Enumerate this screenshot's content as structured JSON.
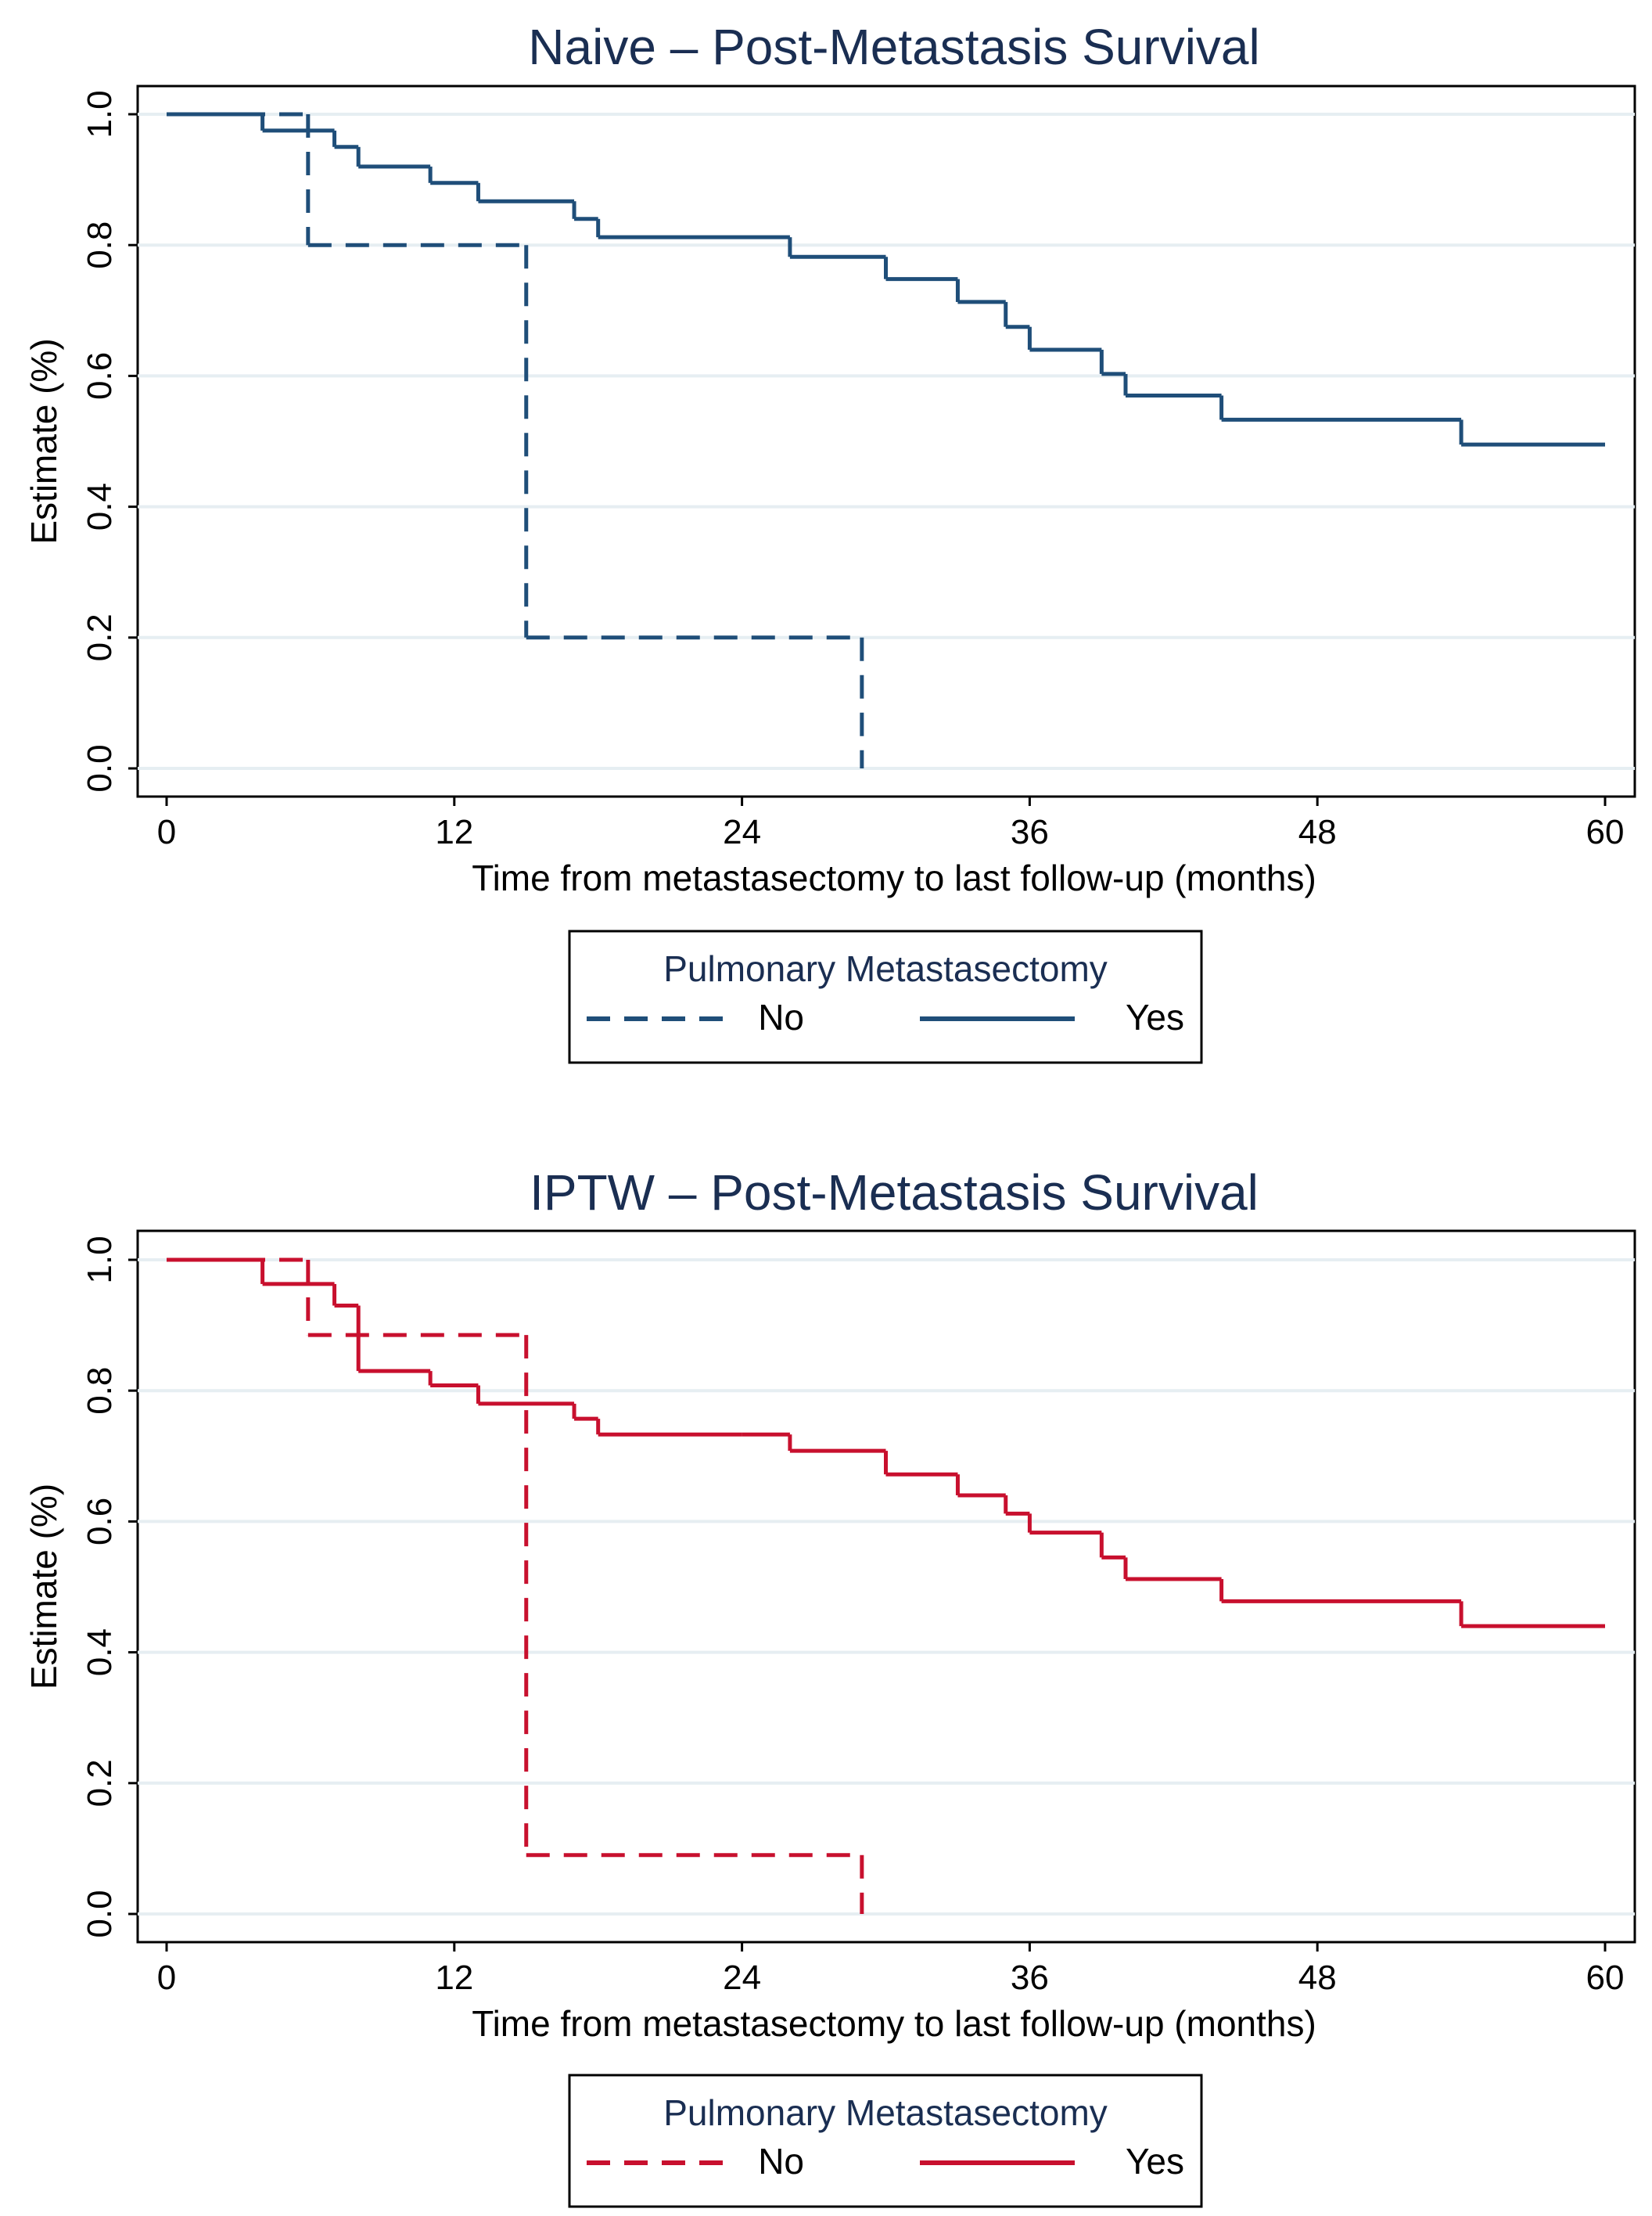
{
  "chart_data": [
    {
      "type": "line",
      "title": "Naive – Post-Metastasis Survival",
      "xlabel": "Time from metastasectomy to last follow-up (months)",
      "ylabel": "Estimate (%)",
      "xlim": [
        0,
        60
      ],
      "ylim": [
        0,
        1
      ],
      "xticks": [
        "0",
        "12",
        "24",
        "36",
        "48",
        "60"
      ],
      "yticks": [
        "0.0",
        "0.2",
        "0.4",
        "0.6",
        "0.8",
        "1.0"
      ],
      "grid": true,
      "color": "#1f4e79",
      "title_color": "#1a2e52",
      "legend": {
        "title": "Pulmonary Metastasectomy",
        "entries": [
          "No",
          "Yes"
        ]
      },
      "series": [
        {
          "name": "No",
          "style": "dashed",
          "x": [
            0,
            5.9,
            15,
            29
          ],
          "y": [
            1.0,
            0.8,
            0.2,
            0.0
          ]
        },
        {
          "name": "Yes",
          "style": "solid",
          "x": [
            0,
            4,
            7,
            8,
            11,
            13,
            17,
            18,
            26,
            30,
            33,
            35,
            36,
            39,
            40,
            44,
            54,
            60
          ],
          "y": [
            1.0,
            0.975,
            0.95,
            0.92,
            0.895,
            0.867,
            0.84,
            0.812,
            0.782,
            0.748,
            0.713,
            0.675,
            0.64,
            0.603,
            0.57,
            0.533,
            0.495,
            0.495
          ]
        }
      ]
    },
    {
      "type": "line",
      "title": "IPTW – Post-Metastasis Survival",
      "xlabel": "Time from metastasectomy to last follow-up (months)",
      "ylabel": "Estimate (%)",
      "xlim": [
        0,
        60
      ],
      "ylim": [
        0,
        1
      ],
      "xticks": [
        "0",
        "12",
        "24",
        "36",
        "48",
        "60"
      ],
      "yticks": [
        "0.0",
        "0.2",
        "0.4",
        "0.6",
        "0.8",
        "1.0"
      ],
      "grid": true,
      "color": "#c8102e",
      "title_color": "#1a2e52",
      "legend": {
        "title": "Pulmonary Metastasectomy",
        "entries": [
          "No",
          "Yes"
        ]
      },
      "series": [
        {
          "name": "No",
          "style": "dashed",
          "x": [
            0,
            5.9,
            15,
            29
          ],
          "y": [
            1.0,
            0.885,
            0.09,
            0.0
          ]
        },
        {
          "name": "Yes",
          "style": "solid",
          "x": [
            0,
            4,
            7,
            8,
            11,
            13,
            17,
            18,
            24,
            26,
            30,
            33,
            35,
            36,
            39,
            40,
            44,
            54,
            60
          ],
          "y": [
            1.0,
            0.963,
            0.93,
            0.83,
            0.808,
            0.78,
            0.757,
            0.733,
            0.733,
            0.708,
            0.672,
            0.64,
            0.612,
            0.583,
            0.545,
            0.512,
            0.478,
            0.44,
            0.44
          ]
        }
      ]
    }
  ]
}
